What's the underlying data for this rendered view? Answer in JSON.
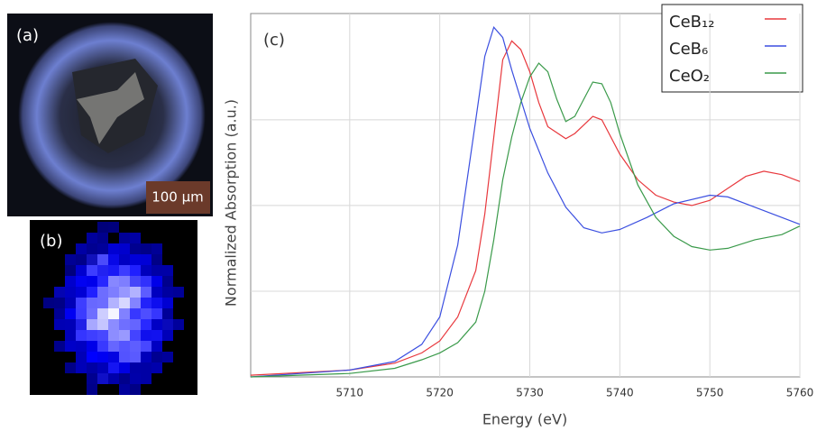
{
  "panels": {
    "a": {
      "label": "(a)",
      "scale_bar": "100 µm"
    },
    "b": {
      "label": "(b)"
    }
  },
  "chart_data": {
    "type": "line",
    "annotation": "(c)",
    "x_label": "Energy (eV)",
    "y_label": "Normalized Absorption (a.u.)",
    "xlim": [
      5699,
      5760
    ],
    "xticks": [
      5710,
      5720,
      5730,
      5740,
      5750,
      5760
    ],
    "ylim": [
      0,
      2.12
    ],
    "yticks": [
      0.5,
      1,
      1.5
    ],
    "grid": true,
    "legend": "upper right",
    "series": [
      {
        "name": "CeB₁₂",
        "color": "#e8383d",
        "x": [
          5699,
          5710,
          5715,
          5718,
          5720,
          5722,
          5724,
          5725,
          5726,
          5727,
          5728,
          5729,
          5730,
          5731,
          5732,
          5734,
          5735,
          5737,
          5738,
          5740,
          5742,
          5744,
          5746,
          5748,
          5750,
          5752,
          5754,
          5756,
          5758,
          5760
        ],
        "values": [
          0.01,
          0.04,
          0.08,
          0.14,
          0.21,
          0.35,
          0.62,
          0.95,
          1.4,
          1.85,
          1.96,
          1.91,
          1.78,
          1.6,
          1.46,
          1.39,
          1.42,
          1.52,
          1.5,
          1.3,
          1.15,
          1.06,
          1.02,
          1.0,
          1.03,
          1.1,
          1.17,
          1.2,
          1.18,
          1.14
        ]
      },
      {
        "name": "CeB₆",
        "color": "#3b4fe0",
        "x": [
          5699,
          5710,
          5715,
          5718,
          5720,
          5722,
          5724,
          5725,
          5726,
          5727,
          5728,
          5730,
          5732,
          5734,
          5736,
          5738,
          5740,
          5743,
          5746,
          5750,
          5752,
          5755,
          5758,
          5760
        ],
        "values": [
          0.0,
          0.04,
          0.09,
          0.19,
          0.35,
          0.77,
          1.5,
          1.87,
          2.04,
          1.98,
          1.79,
          1.45,
          1.19,
          0.99,
          0.87,
          0.84,
          0.86,
          0.93,
          1.01,
          1.06,
          1.05,
          0.99,
          0.93,
          0.89
        ]
      },
      {
        "name": "CeO₂",
        "color": "#3a9a4a",
        "x": [
          5699,
          5710,
          5715,
          5718,
          5720,
          5722,
          5724,
          5725,
          5726,
          5727,
          5728,
          5729,
          5730,
          5731,
          5732,
          5733,
          5734,
          5735,
          5736,
          5737,
          5738,
          5739,
          5740,
          5742,
          5744,
          5746,
          5748,
          5750,
          5752,
          5755,
          5758,
          5760
        ],
        "values": [
          0.0,
          0.02,
          0.05,
          0.1,
          0.14,
          0.2,
          0.32,
          0.5,
          0.8,
          1.15,
          1.4,
          1.6,
          1.75,
          1.83,
          1.78,
          1.62,
          1.49,
          1.52,
          1.62,
          1.72,
          1.71,
          1.6,
          1.42,
          1.12,
          0.93,
          0.82,
          0.76,
          0.74,
          0.75,
          0.8,
          0.83,
          0.88
        ]
      }
    ]
  }
}
